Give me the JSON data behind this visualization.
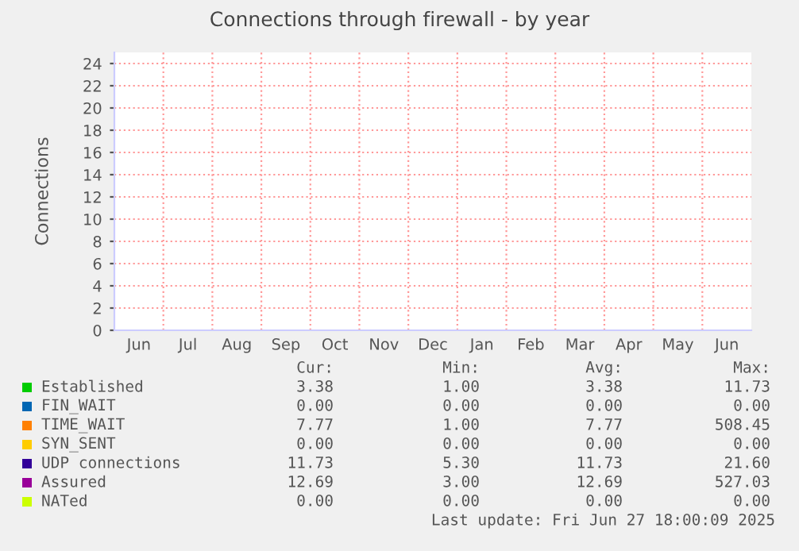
{
  "chart_data": {
    "type": "line",
    "title": "Connections through firewall - by year",
    "ylabel": "Connections",
    "categories": [
      "Jun",
      "Jul",
      "Aug",
      "Sep",
      "Oct",
      "Nov",
      "Dec",
      "Jan",
      "Feb",
      "Mar",
      "Apr",
      "May",
      "Jun"
    ],
    "ylim": [
      0,
      25
    ],
    "yticks": [
      0,
      2,
      4,
      6,
      8,
      10,
      12,
      14,
      16,
      18,
      20,
      22,
      24
    ],
    "grid": true,
    "legend": "bottom",
    "series": [
      {
        "name": "Established",
        "color": "#00cc00",
        "values": [
          null,
          null,
          null,
          null,
          null,
          null,
          null,
          null,
          null,
          null,
          null,
          null,
          null
        ]
      },
      {
        "name": "FIN_WAIT",
        "color": "#0066b3",
        "values": [
          null,
          null,
          null,
          null,
          null,
          null,
          null,
          null,
          null,
          null,
          null,
          null,
          null
        ]
      },
      {
        "name": "TIME_WAIT",
        "color": "#ff8000",
        "values": [
          null,
          null,
          null,
          null,
          null,
          null,
          null,
          null,
          null,
          null,
          null,
          null,
          null
        ]
      },
      {
        "name": "SYN_SENT",
        "color": "#ffcc00",
        "values": [
          null,
          null,
          null,
          null,
          null,
          null,
          null,
          null,
          null,
          null,
          null,
          null,
          null
        ]
      },
      {
        "name": "UDP connections",
        "color": "#330099",
        "values": [
          null,
          null,
          null,
          null,
          null,
          null,
          null,
          null,
          null,
          null,
          null,
          null,
          null
        ]
      },
      {
        "name": "Assured",
        "color": "#990099",
        "values": [
          null,
          null,
          null,
          null,
          null,
          null,
          null,
          null,
          null,
          null,
          null,
          null,
          null
        ]
      },
      {
        "name": "NATed",
        "color": "#ccff00",
        "values": [
          null,
          null,
          null,
          null,
          null,
          null,
          null,
          null,
          null,
          null,
          null,
          null,
          null
        ]
      }
    ],
    "annotations": [
      "Cur:",
      "Min:",
      "Avg:",
      "Max:",
      "3.38",
      "1.00",
      "3.38",
      "11.73",
      "0.00",
      "0.00",
      "0.00",
      "0.00",
      "7.77",
      "1.00",
      "7.77",
      "508.45",
      "0.00",
      "0.00",
      "0.00",
      "0.00",
      "11.73",
      "5.30",
      "11.73",
      "21.60",
      "12.69",
      "3.00",
      "12.69",
      "527.03",
      "0.00",
      "0.00",
      "0.00",
      "0.00",
      "Last update: Fri Jun 27 18:00:09 2025"
    ]
  }
}
